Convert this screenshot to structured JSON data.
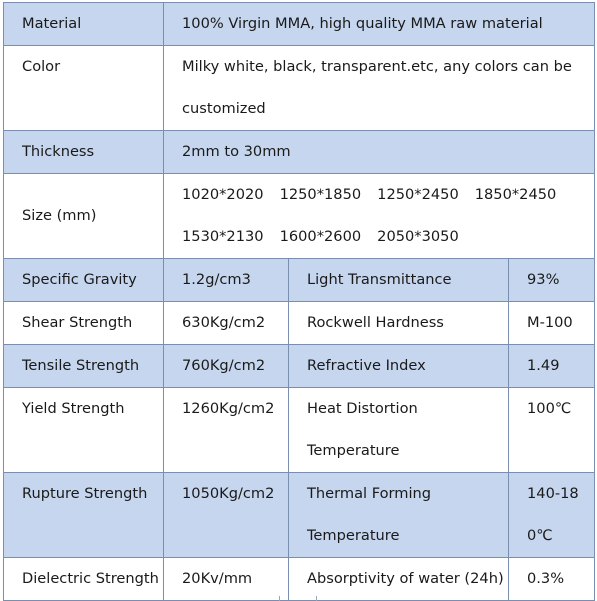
{
  "rows": {
    "material": {
      "label": "Material",
      "value": "100% Virgin MMA, high quality MMA raw material"
    },
    "color": {
      "label": "Color",
      "line1": "Milky white, black, transparent.etc, any colors can be",
      "line2": "customized"
    },
    "thickness": {
      "label": "Thickness",
      "value": "2mm to 30mm"
    },
    "size": {
      "label": "Size (mm)",
      "values": [
        "1020*2020",
        "1250*1850",
        "1250*2450",
        "1850*2450",
        "1530*2130",
        "1600*2600",
        "2050*3050"
      ]
    },
    "r5": {
      "l1": "Specific Gravity",
      "v1": "1.2g/cm3",
      "l2": "Light Transmittance",
      "v2": "93%"
    },
    "r6": {
      "l1": "Shear Strength",
      "v1": "630Kg/cm2",
      "l2": "Rockwell Hardness",
      "v2": "M-100"
    },
    "r7": {
      "l1": "Tensile Strength",
      "v1": "760Kg/cm2",
      "l2": "Refractive Index",
      "v2": "1.49"
    },
    "r8": {
      "l1": "Yield Strength",
      "v1": "1260Kg/cm2",
      "l2a": "Heat Distortion",
      "l2b": "Temperature",
      "v2": "100℃"
    },
    "r9": {
      "l1": "Rupture Strength",
      "v1": "1050Kg/cm2",
      "l2a": "Thermal Forming",
      "l2b": "Temperature",
      "v2a": "140-18",
      "v2b": "0℃"
    },
    "r10": {
      "l1": "Dielectric Strength",
      "v1": "20Kv/mm",
      "l2": "Absorptivity of water (24h)",
      "v2": "0.3%"
    }
  }
}
